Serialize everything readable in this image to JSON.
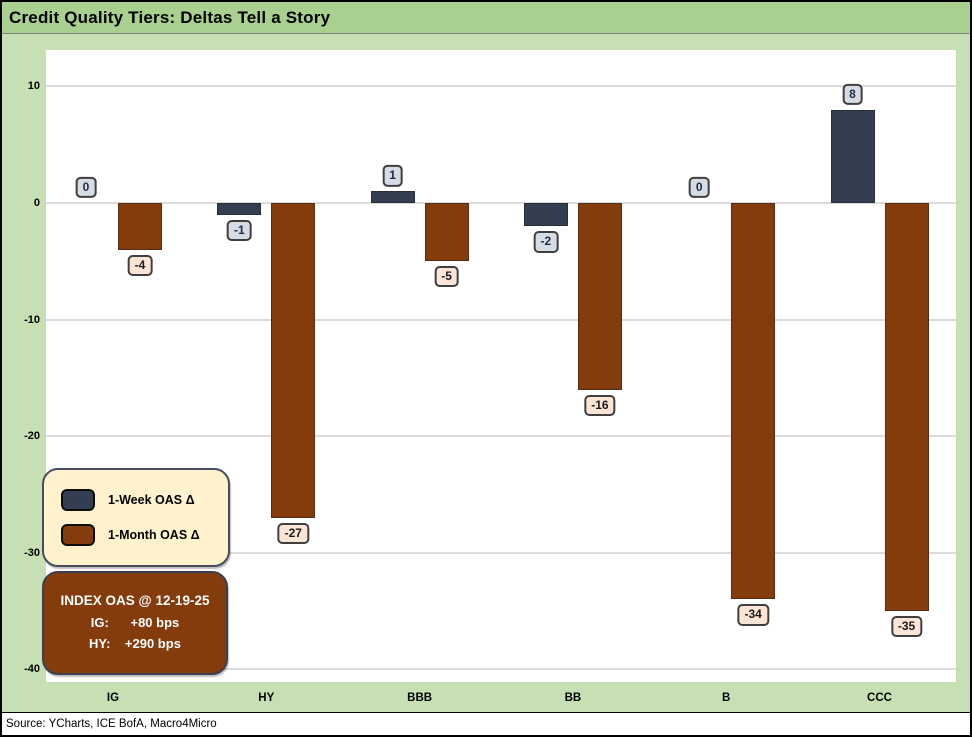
{
  "title": "Credit Quality Tiers: Deltas Tell a Story",
  "source": "Source: YCharts, ICE BofA, Macro4Micro",
  "colors": {
    "title_bg": "#a9d08e",
    "chart_bg": "#c6e0b4",
    "plot_bg": "#ffffff",
    "gridline": "#dcdcdc",
    "week_bar": "#333f50",
    "month_bar": "#843c0c",
    "week_label_bg": "#d6dce4",
    "month_label_bg": "#fce4d6",
    "legend_bg": "#fff2cc",
    "info_box_bg": "#843c0c"
  },
  "chart_data": {
    "type": "bar",
    "categories": [
      "IG",
      "HY",
      "BBB",
      "BB",
      "B",
      "CCC"
    ],
    "series": [
      {
        "name": "1-Week OAS Δ",
        "key": "week",
        "values": [
          0,
          -1,
          1,
          -2,
          0,
          8
        ],
        "bar_color": "#333f50",
        "label_bg": "#d6dce4",
        "label_color": "#1f2a44"
      },
      {
        "name": "1-Month OAS Δ",
        "key": "month",
        "values": [
          -4,
          -27,
          -5,
          -16,
          -34,
          -35
        ],
        "bar_color": "#843c0c",
        "label_bg": "#fce4d6",
        "label_color": "#1a1a1a"
      }
    ],
    "xlabel": "",
    "ylabel": "",
    "ylim": [
      -40,
      10
    ],
    "yticks": [
      10,
      0,
      -10,
      -20,
      -30,
      -40
    ],
    "grid": "horizontal",
    "legend_position": "inside-left",
    "data_labels": true
  },
  "legend": {
    "items": [
      {
        "label": "1-Week OAS Δ",
        "color": "#333f50"
      },
      {
        "label": "1-Month OAS Δ",
        "color": "#843c0c"
      }
    ]
  },
  "info_box": {
    "lines": [
      "INDEX OAS @ 12-19-25",
      "IG:      +80 bps",
      "HY:    +290 bps"
    ]
  }
}
